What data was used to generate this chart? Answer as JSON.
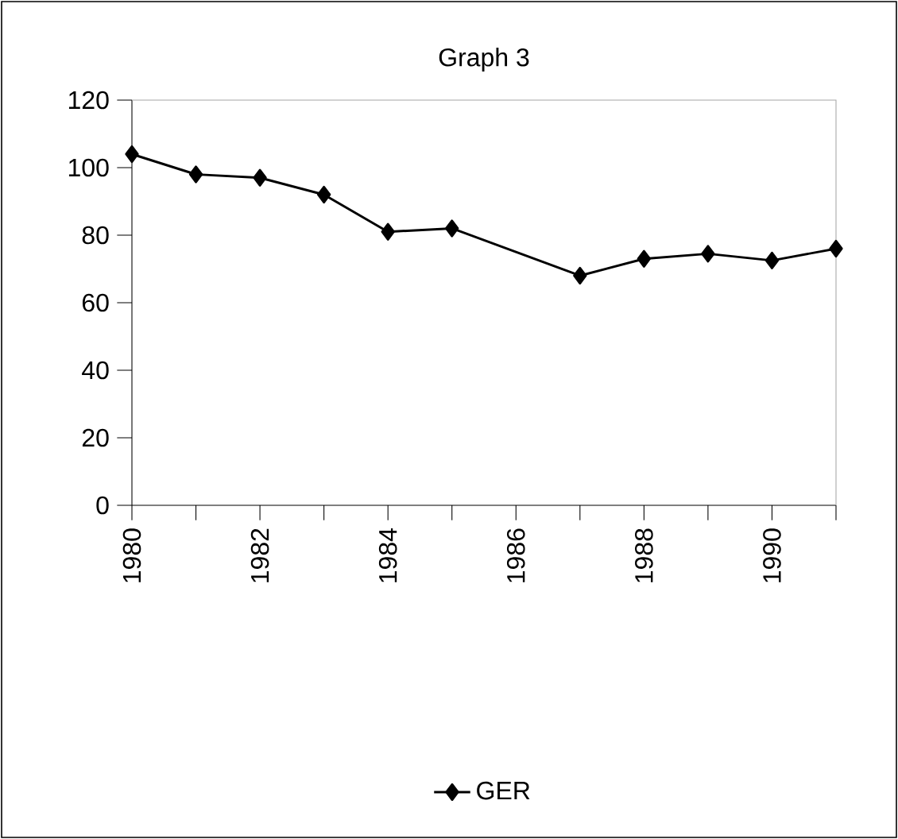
{
  "chart_data": {
    "type": "line",
    "title": "Graph 3",
    "x": [
      1980,
      1981,
      1982,
      1983,
      1984,
      1985,
      1987,
      1988,
      1989,
      1990,
      1991
    ],
    "series": [
      {
        "name": "GER",
        "color": "#000000",
        "values": [
          104,
          98,
          97,
          92,
          81,
          82,
          68,
          73,
          74.5,
          72.5,
          76
        ]
      }
    ],
    "xlim": [
      1980,
      1991
    ],
    "xticks": [
      1980,
      {
        "value": 1981,
        "label": null
      },
      1982,
      {
        "value": 1983,
        "label": null
      },
      1984,
      {
        "value": 1985,
        "label": null
      },
      1986,
      {
        "value": 1987,
        "label": null
      },
      1988,
      {
        "value": 1989,
        "label": null
      },
      1990,
      {
        "value": 1991,
        "label": null
      }
    ],
    "ylim": [
      0,
      120
    ],
    "yticks": [
      0,
      20,
      40,
      60,
      80,
      100,
      120
    ],
    "grid": false,
    "legend": "bottom",
    "marker": "diamond",
    "line_style": "solid"
  }
}
